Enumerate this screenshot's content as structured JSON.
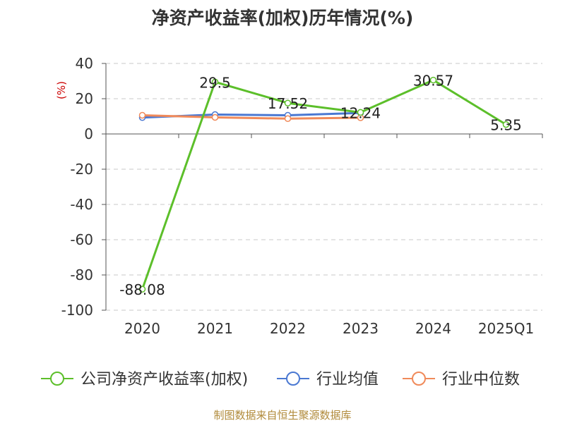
{
  "chart_data": {
    "type": "line",
    "title": "净资产收益率(加权)历年情况(%)",
    "ylabel": "(%)",
    "xlabel": "",
    "categories": [
      "2020",
      "2021",
      "2022",
      "2023",
      "2024",
      "2025Q1"
    ],
    "ylim": [
      -100,
      40
    ],
    "yticks": [
      40,
      20,
      0,
      -20,
      -40,
      -60,
      -80,
      -100
    ],
    "grid": true,
    "legend_position": "bottom",
    "series": [
      {
        "name": "公司净资产收益率(加权)",
        "color": "#5cbf2a",
        "values": [
          -88.08,
          29.5,
          17.52,
          12.24,
          30.57,
          5.35
        ],
        "labels": [
          "-88.08",
          "29.5",
          "17.52",
          "12.24",
          "30.57",
          "5.35"
        ]
      },
      {
        "name": "行业均值",
        "color": "#4a78d2",
        "values": [
          9.3,
          11.0,
          10.6,
          11.9,
          null,
          null
        ]
      },
      {
        "name": "行业中位数",
        "color": "#f08a5a",
        "values": [
          10.6,
          9.4,
          8.7,
          9.2,
          null,
          null
        ]
      }
    ],
    "source": "制图数据来自恒生聚源数据库"
  }
}
